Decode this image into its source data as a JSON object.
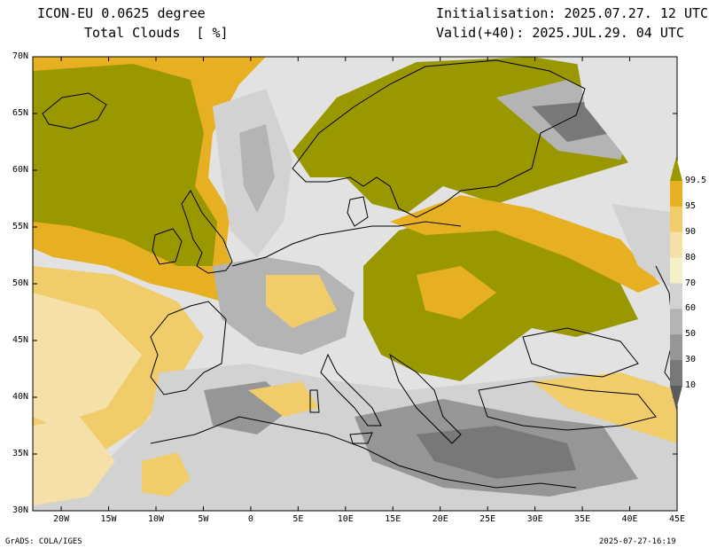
{
  "header": {
    "model": "ICON-EU 0.0625 degree",
    "variable": "Total Clouds  [ %]",
    "init": "Initialisation: 2025.07.27. 12 UTC",
    "valid": "Valid(+40): 2025.JUL.29. 04 UTC"
  },
  "axes": {
    "lat_labels": [
      "70N",
      "65N",
      "60N",
      "55N",
      "50N",
      "45N",
      "40N",
      "35N",
      "30N"
    ],
    "lon_labels": [
      "20W",
      "15W",
      "10W",
      "5W",
      "0",
      "5E",
      "10E",
      "15E",
      "20E",
      "25E",
      "30E",
      "35E",
      "40E",
      "45E"
    ],
    "lat_range": [
      30,
      70
    ],
    "lon_range": [
      -23,
      45
    ]
  },
  "colorbar": {
    "labels": [
      "99.5",
      "95",
      "90",
      "80",
      "70",
      "60",
      "50",
      "30",
      "10"
    ],
    "colors": [
      "#9a9800",
      "#e6b022",
      "#f0cc6a",
      "#f4e0a8",
      "#f4f0c8",
      "#d2d2d2",
      "#b4b4b4",
      "#969696",
      "#787878",
      "#5a5a5a"
    ]
  },
  "colors": {
    "background": "#e2e2e2",
    "coastline": "#000000"
  },
  "footer": {
    "left": "GrADS: COLA/IGES",
    "right": "2025-07-27-16:19"
  }
}
